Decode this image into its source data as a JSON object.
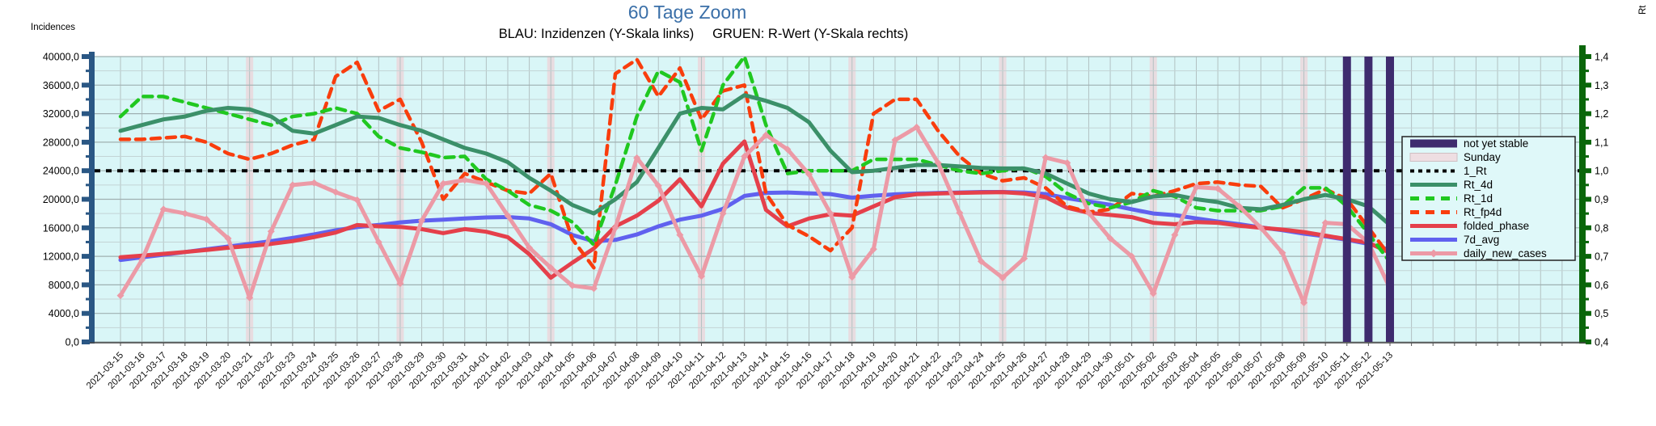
{
  "header": {
    "title": "60 Tage Zoom",
    "subtitle": "BLAU: Inzidenzen (Y-Skala links)     GRUEN: R-Wert (Y-Skala rechts)"
  },
  "chart_data": {
    "type": "line",
    "title": "60 Tage Zoom",
    "subtitle": "BLAU: Inzidenzen (Y-Skala links)   GRUEN: R-Wert (Y-Skala rechts)",
    "x": [
      "2021-03-15",
      "2021-03-16",
      "2021-03-17",
      "2021-03-18",
      "2021-03-19",
      "2021-03-20",
      "2021-03-21",
      "2021-03-22",
      "2021-03-23",
      "2021-03-24",
      "2021-03-25",
      "2021-03-26",
      "2021-03-27",
      "2021-03-28",
      "2021-03-29",
      "2021-03-30",
      "2021-03-31",
      "2021-04-01",
      "2021-04-02",
      "2021-04-03",
      "2021-04-04",
      "2021-04-05",
      "2021-04-06",
      "2021-04-07",
      "2021-04-08",
      "2021-04-09",
      "2021-04-10",
      "2021-04-11",
      "2021-04-12",
      "2021-04-13",
      "2021-04-14",
      "2021-04-15",
      "2021-04-16",
      "2021-04-17",
      "2021-04-18",
      "2021-04-19",
      "2021-04-20",
      "2021-04-21",
      "2021-04-22",
      "2021-04-23",
      "2021-04-24",
      "2021-04-25",
      "2021-04-26",
      "2021-04-27",
      "2021-04-28",
      "2021-04-29",
      "2021-04-30",
      "2021-05-01",
      "2021-05-02",
      "2021-05-03",
      "2021-05-04",
      "2021-05-05",
      "2021-05-06",
      "2021-05-07",
      "2021-05-08",
      "2021-05-09",
      "2021-05-10",
      "2021-05-11",
      "2021-05-12",
      "2021-05-13"
    ],
    "left_axis": {
      "label": "Incidences",
      "min": 0,
      "max": 40000,
      "tick_step": 4000,
      "tick_labels": [
        "0,0",
        "4000,0",
        "8000,0",
        "12000,0",
        "16000,0",
        "20000,0",
        "24000,0",
        "28000,0",
        "32000,0",
        "36000,0",
        "40000,0"
      ]
    },
    "right_axis": {
      "label": "Rt",
      "min": 0.4,
      "max": 1.4,
      "tick_step": 0.1,
      "tick_labels": [
        "0,4",
        "0,5",
        "0,6",
        "0,7",
        "0,8",
        "0,9",
        "1,0",
        "1,1",
        "1,2",
        "1,3",
        "1,4"
      ]
    },
    "grid": true,
    "legend_position": "right",
    "reference_line": {
      "name": "1_Rt",
      "axis": "right",
      "value": 1.0
    },
    "sunday_bands": [
      "2021-03-21",
      "2021-03-28",
      "2021-04-04",
      "2021-04-11",
      "2021-04-18",
      "2021-04-25",
      "2021-05-02",
      "2021-05-09"
    ],
    "not_yet_stable_bands": [
      "2021-05-11",
      "2021-05-12",
      "2021-05-13"
    ],
    "series": [
      {
        "name": "7d_avg",
        "axis": "left",
        "style": "solid",
        "color": "#6061ef",
        "width": 5,
        "values": [
          11480,
          11860,
          12230,
          12600,
          13000,
          13370,
          13750,
          14130,
          14580,
          15070,
          15640,
          16100,
          16400,
          16760,
          17000,
          17140,
          17300,
          17450,
          17510,
          17300,
          16500,
          15000,
          14100,
          14300,
          15060,
          16200,
          17140,
          17700,
          18650,
          20460,
          20900,
          20950,
          20840,
          20720,
          20230,
          20500,
          20690,
          20800,
          20870,
          20950,
          21020,
          21020,
          20950,
          20720,
          20160,
          19670,
          19220,
          18600,
          18010,
          17780,
          17320,
          16870,
          16500,
          16040,
          15660,
          15180,
          14800,
          14310,
          13740,
          12910
        ]
      },
      {
        "name": "folded_phase",
        "axis": "left",
        "style": "solid",
        "color": "#e5404b",
        "width": 5,
        "values": [
          11860,
          12100,
          12350,
          12600,
          12900,
          13200,
          13450,
          13750,
          14130,
          14700,
          15330,
          16390,
          16200,
          16120,
          15820,
          15250,
          15820,
          15440,
          14690,
          12300,
          9000,
          11100,
          13100,
          16200,
          17700,
          19800,
          22800,
          19000,
          25000,
          28100,
          18500,
          16200,
          17300,
          17900,
          17700,
          19000,
          20300,
          20700,
          20800,
          20900,
          20950,
          21000,
          20800,
          20300,
          18800,
          18100,
          17800,
          17500,
          16700,
          16500,
          16800,
          16700,
          16300,
          16000,
          15750,
          15400,
          14900,
          14400,
          13900,
          12500
        ]
      },
      {
        "name": "Rt_fp4d",
        "axis": "right",
        "style": "dashed",
        "color": "#f93d0d",
        "width": 4.5,
        "values": [
          1.11,
          1.11,
          1.115,
          1.12,
          1.1,
          1.06,
          1.04,
          1.06,
          1.09,
          1.11,
          1.33,
          1.38,
          1.21,
          1.25,
          1.1,
          0.9,
          0.99,
          0.96,
          0.93,
          0.92,
          0.99,
          0.76,
          0.66,
          1.34,
          1.39,
          1.26,
          1.36,
          1.18,
          1.28,
          1.3,
          0.92,
          0.81,
          0.77,
          0.72,
          0.8,
          1.2,
          1.25,
          1.25,
          1.14,
          1.05,
          0.99,
          0.965,
          0.975,
          0.94,
          0.875,
          0.855,
          0.865,
          0.92,
          0.91,
          0.93,
          0.955,
          0.96,
          0.95,
          0.945,
          0.87,
          0.9,
          0.935,
          0.9,
          0.8,
          0.7
        ]
      },
      {
        "name": "Rt_1d",
        "axis": "right",
        "style": "dashed",
        "color": "#20c820",
        "width": 4.5,
        "values": [
          1.19,
          1.26,
          1.26,
          1.24,
          1.22,
          1.2,
          1.18,
          1.16,
          1.19,
          1.2,
          1.22,
          1.2,
          1.12,
          1.08,
          1.065,
          1.046,
          1.05,
          0.97,
          0.93,
          0.88,
          0.86,
          0.82,
          0.74,
          0.95,
          1.19,
          1.35,
          1.31,
          1.07,
          1.3,
          1.4,
          1.16,
          0.99,
          1.0,
          1.0,
          1.0,
          1.04,
          1.04,
          1.04,
          1.02,
          1.0,
          0.99,
          1.0,
          1.01,
          0.98,
          0.92,
          0.885,
          0.87,
          0.89,
          0.93,
          0.91,
          0.87,
          0.86,
          0.86,
          0.86,
          0.875,
          0.94,
          0.94,
          0.875,
          0.78,
          0.68
        ]
      },
      {
        "name": "Rt_4d",
        "axis": "right",
        "style": "solid",
        "color": "#3b9069",
        "width": 5,
        "values": [
          1.14,
          1.16,
          1.18,
          1.19,
          1.21,
          1.22,
          1.215,
          1.19,
          1.14,
          1.13,
          1.16,
          1.19,
          1.185,
          1.16,
          1.14,
          1.11,
          1.08,
          1.06,
          1.03,
          0.975,
          0.93,
          0.88,
          0.85,
          0.9,
          0.96,
          1.08,
          1.2,
          1.22,
          1.215,
          1.265,
          1.245,
          1.22,
          1.17,
          1.07,
          0.995,
          1.0,
          1.01,
          1.02,
          1.02,
          1.015,
          1.01,
          1.008,
          1.008,
          0.99,
          0.955,
          0.92,
          0.9,
          0.89,
          0.91,
          0.915,
          0.9,
          0.89,
          0.87,
          0.865,
          0.88,
          0.9,
          0.915,
          0.9,
          0.875,
          0.81
        ]
      },
      {
        "name": "daily_new_cases",
        "axis": "left",
        "style": "solid-markers",
        "color": "#ec9aa6",
        "width": 5,
        "values": [
          6500,
          11500,
          18600,
          18000,
          17200,
          14500,
          6200,
          15500,
          22000,
          22300,
          21000,
          19900,
          14000,
          8200,
          17000,
          22200,
          22700,
          22200,
          17700,
          13200,
          10400,
          7900,
          7500,
          16000,
          25800,
          21900,
          15000,
          9200,
          18000,
          26000,
          29000,
          27000,
          23500,
          18000,
          9100,
          13000,
          28300,
          30100,
          25100,
          18100,
          11300,
          9000,
          11700,
          25850,
          25100,
          18100,
          14500,
          12000,
          6800,
          15000,
          21700,
          21500,
          19000,
          16000,
          12500,
          5500,
          16700,
          16500,
          13900,
          7500
        ]
      }
    ],
    "legend": [
      {
        "label": "not yet stable",
        "swatch": "bar",
        "color": "#3e2b6e"
      },
      {
        "label": "Sunday",
        "swatch": "bar",
        "color": "#eedee2"
      },
      {
        "label": "1_Rt",
        "swatch": "dotted-line",
        "color": "#000000"
      },
      {
        "label": "Rt_4d",
        "swatch": "line",
        "color": "#3b9069"
      },
      {
        "label": "Rt_1d",
        "swatch": "dashed-line",
        "color": "#20c820"
      },
      {
        "label": "Rt_fp4d",
        "swatch": "dashed-line",
        "color": "#f93d0d"
      },
      {
        "label": "folded_phase",
        "swatch": "line",
        "color": "#e5404b"
      },
      {
        "label": "7d_avg",
        "swatch": "line",
        "color": "#6061ef"
      },
      {
        "label": "daily_new_cases",
        "swatch": "line-diamond",
        "color": "#ec9aa6"
      }
    ]
  },
  "colors": {
    "title": "#3a6fa8",
    "plot_bg": "#d9f6f7",
    "grid_major": "#9fb0b1",
    "grid_minor": "#c3d4d5",
    "grid_vertical": "#b2c1c2",
    "axis_left": "#2a5784",
    "axis_right": "#0a660a",
    "axis_bottom": "#444444",
    "sunday_band": "#e9d9dd",
    "not_yet_stable_band": "#3e2b6e",
    "reference_line": "#000000"
  }
}
